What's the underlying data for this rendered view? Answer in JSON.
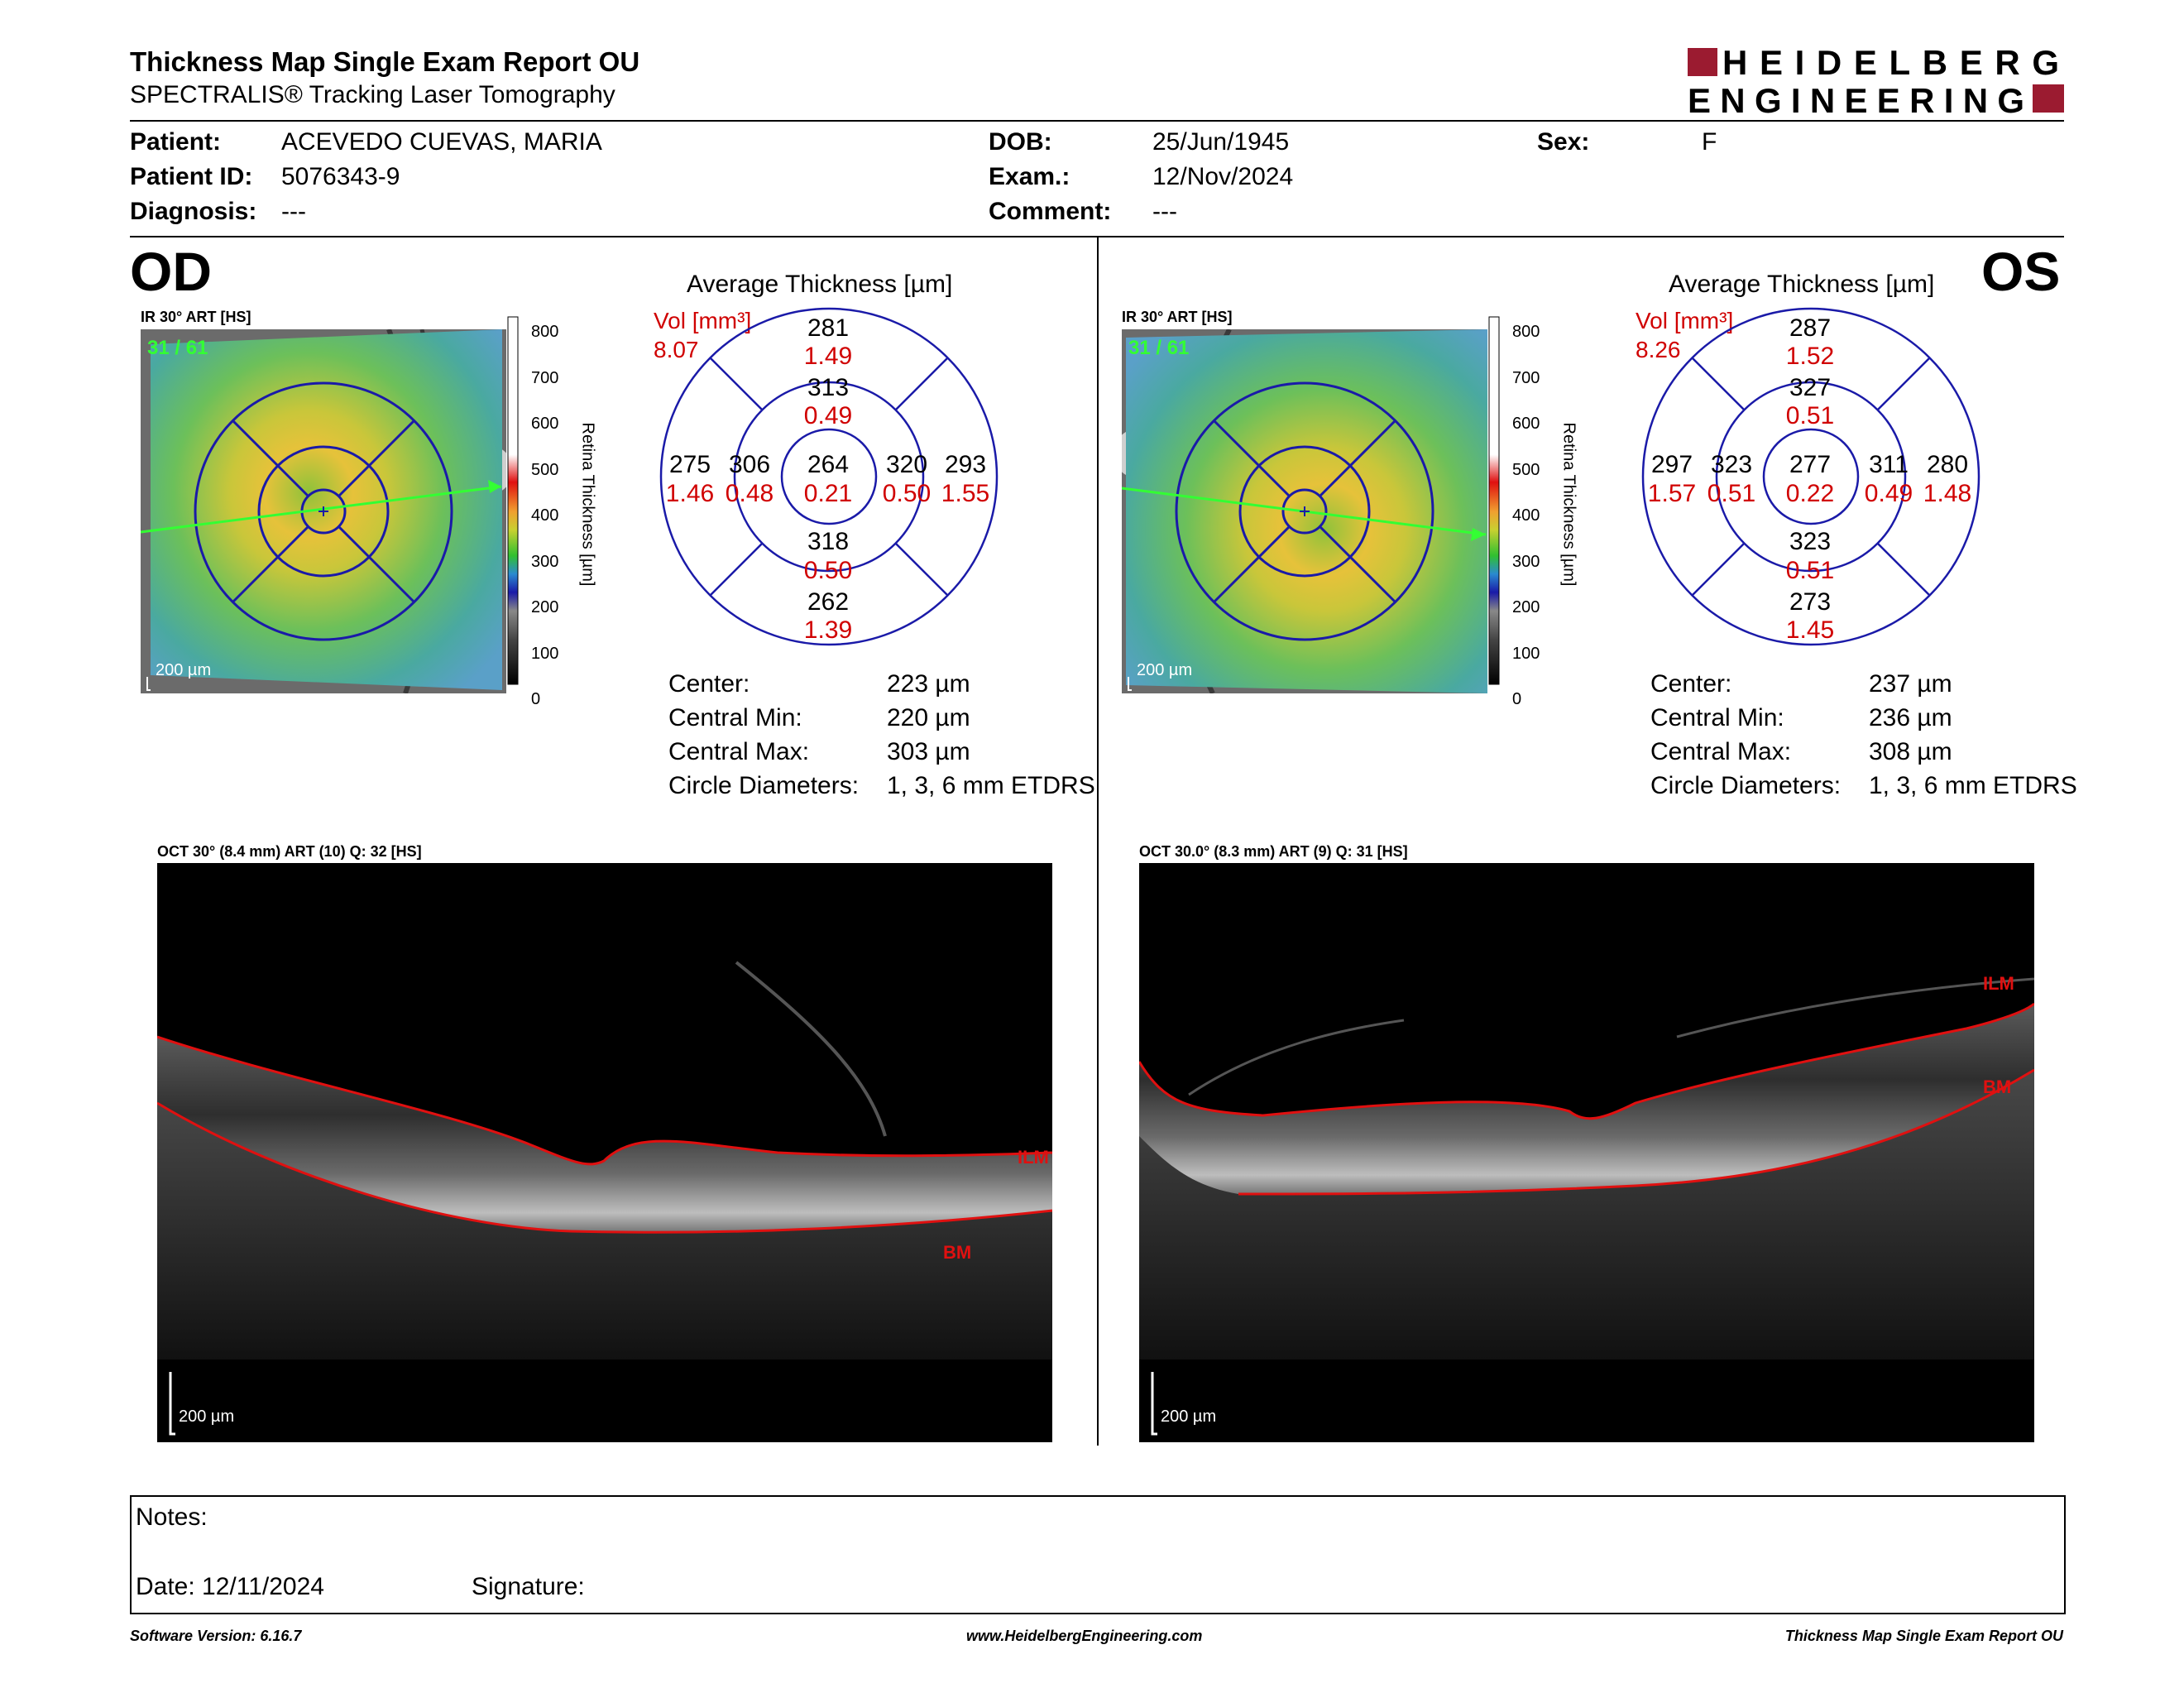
{
  "header": {
    "title": "Thickness Map Single Exam Report OU",
    "subtitle": "SPECTRALIS® Tracking Laser Tomography",
    "logo_line1": "HEIDELBERG",
    "logo_line2": "ENGINEERING",
    "logo_color": "#9b1b30"
  },
  "patient": {
    "patient_label": "Patient:",
    "patient": "ACEVEDO CUEVAS, MARIA",
    "id_label": "Patient ID:",
    "id": "5076343-9",
    "diagnosis_label": "Diagnosis:",
    "diagnosis": "---",
    "dob_label": "DOB:",
    "dob": "25/Jun/1945",
    "exam_label": "Exam.:",
    "exam": "12/Nov/2024",
    "comment_label": "Comment:",
    "comment": "---",
    "sex_label": "Sex:",
    "sex": "F"
  },
  "od": {
    "eye": "OD",
    "ir_label": "IR 30° ART [HS]",
    "frame": "31 / 61",
    "scale_label": "200 µm",
    "map_title": "Average Thickness [µm]",
    "vol_label": "Vol [mm³]",
    "vol": "8.07",
    "thickness": {
      "s_outer": "281",
      "s_inner": "313",
      "t_outer": "275",
      "t_inner": "306",
      "center": "264",
      "n_inner": "320",
      "n_outer": "293",
      "i_inner": "318",
      "i_outer": "262"
    },
    "volume": {
      "s_outer": "1.49",
      "s_inner": "0.49",
      "t_outer": "1.46",
      "t_inner": "0.48",
      "center": "0.21",
      "n_inner": "0.50",
      "n_outer": "1.55",
      "i_inner": "0.50",
      "i_outer": "1.39"
    },
    "stats": {
      "center_label": "Center:",
      "center": "223 µm",
      "min_label": "Central Min:",
      "min": "220 µm",
      "max_label": "Central Max:",
      "max": "303 µm",
      "diam_label": "Circle Diameters:",
      "diam": "1, 3, 6 mm ETDRS"
    },
    "oct_label": "OCT 30° (8.4 mm) ART (10) Q: 32 [HS]",
    "oct_scale": "200 µm",
    "ilm": "ILM",
    "bm": "BM"
  },
  "os": {
    "eye": "OS",
    "ir_label": "IR 30° ART [HS]",
    "frame": "31 / 61",
    "scale_label": "200 µm",
    "map_title": "Average Thickness [µm]",
    "vol_label": "Vol [mm³]",
    "vol": "8.26",
    "thickness": {
      "s_outer": "287",
      "s_inner": "327",
      "t_outer": "297",
      "t_inner": "323",
      "center": "277",
      "n_inner": "311",
      "n_outer": "280",
      "i_inner": "323",
      "i_outer": "273"
    },
    "volume": {
      "s_outer": "1.52",
      "s_inner": "0.51",
      "t_outer": "1.57",
      "t_inner": "0.51",
      "center": "0.22",
      "n_inner": "0.49",
      "n_outer": "1.48",
      "i_inner": "0.51",
      "i_outer": "1.45"
    },
    "stats": {
      "center_label": "Center:",
      "center": "237 µm",
      "min_label": "Central Min:",
      "min": "236 µm",
      "max_label": "Central Max:",
      "max": "308 µm",
      "diam_label": "Circle Diameters:",
      "diam": "1, 3, 6 mm ETDRS"
    },
    "oct_label": "OCT 30.0° (8.3 mm) ART (9) Q: 31 [HS]",
    "oct_scale": "200 µm",
    "ilm": "ILM",
    "bm": "BM"
  },
  "colorbar": {
    "ticks": [
      "800",
      "700",
      "600",
      "500",
      "400",
      "300",
      "200",
      "100",
      "0"
    ],
    "axis_title": "Retina Thickness [µm]"
  },
  "notes": {
    "notes_label": "Notes:",
    "date_label": "Date: 12/11/2024",
    "signature_label": "Signature:"
  },
  "footer": {
    "version": "Software Version: 6.16.7",
    "website": "www.HeidelbergEngineering.com",
    "report": "Thickness Map Single Exam Report OU"
  },
  "colors": {
    "thickness_text": "#000000",
    "volume_text": "#d00000",
    "grid_blue": "#1a1aa8",
    "ilm_bm_red": "#d00000"
  }
}
